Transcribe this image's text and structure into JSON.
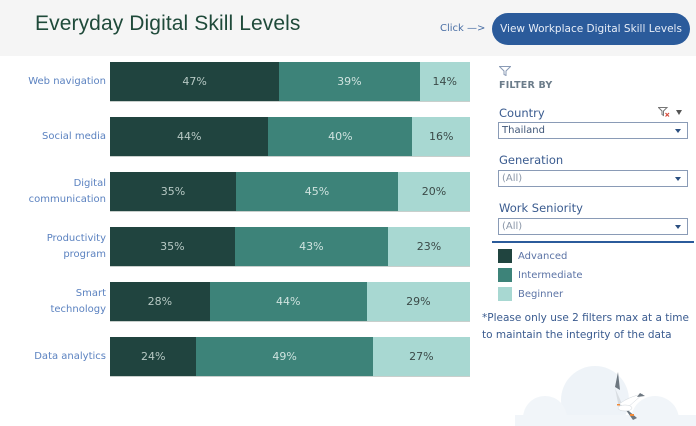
{
  "header": {
    "title": "Everyday Digital Skill Levels",
    "click_hint": "Click —>",
    "nav_button_label": "View Workplace Digital Skill Levels"
  },
  "chart_data": {
    "type": "bar",
    "orientation": "horizontal",
    "stacked": true,
    "normalized": true,
    "title": "Everyday Digital Skill Levels",
    "xlabel": "",
    "ylabel": "",
    "xlim": [
      0,
      100
    ],
    "grid": false,
    "legend_position": "right",
    "categories": [
      "Web navigation",
      "Social media",
      "Digital communication",
      "Productivity program",
      "Smart technology",
      "Data analytics"
    ],
    "category_lines": [
      [
        "Web navigation"
      ],
      [
        "Social media"
      ],
      [
        "Digital",
        "communication"
      ],
      [
        "Productivity",
        "program"
      ],
      [
        "Smart",
        "technology"
      ],
      [
        "Data analytics"
      ]
    ],
    "series": [
      {
        "name": "Advanced",
        "color": "#20443f",
        "values": [
          47,
          44,
          35,
          35,
          28,
          24
        ]
      },
      {
        "name": "Intermediate",
        "color": "#3d8379",
        "values": [
          39,
          40,
          45,
          43,
          44,
          49
        ]
      },
      {
        "name": "Beginner",
        "color": "#a8d8d2",
        "values": [
          14,
          16,
          20,
          23,
          29,
          27
        ]
      }
    ],
    "value_labels": [
      [
        "47%",
        "39%",
        "14%"
      ],
      [
        "44%",
        "40%",
        "16%"
      ],
      [
        "35%",
        "45%",
        "20%"
      ],
      [
        "35%",
        "43%",
        "23%"
      ],
      [
        "28%",
        "44%",
        "29%"
      ],
      [
        "24%",
        "49%",
        "27%"
      ]
    ]
  },
  "filters": {
    "heading": "FILTER BY",
    "country": {
      "label": "Country",
      "value": "Thailand"
    },
    "generation": {
      "label": "Generation",
      "value": "(All)"
    },
    "work_seniority": {
      "label": "Work Seniority",
      "value": "(All)"
    }
  },
  "legend": {
    "items": [
      {
        "label": "Advanced",
        "color": "#20443f"
      },
      {
        "label": "Intermediate",
        "color": "#3d8379"
      },
      {
        "label": "Beginner",
        "color": "#a8d8d2"
      }
    ]
  },
  "note": "*Please only use 2 filters max at a time to maintain the integrity of the data",
  "colors": {
    "title": "#1f4a3a",
    "accent_blue": "#2b5b9b",
    "header_bg": "#f5f5f5"
  }
}
